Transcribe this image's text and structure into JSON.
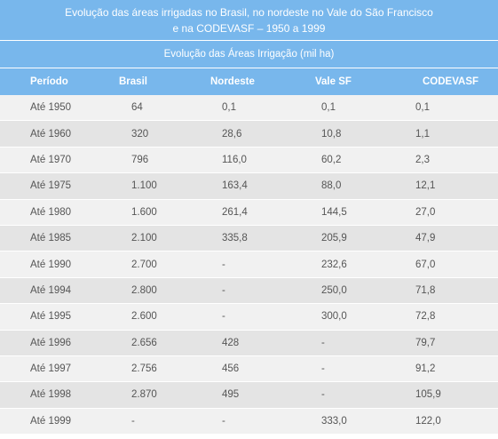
{
  "title_line1": "Evolução das áreas irrigadas no Brasil, no nordeste no Vale do São Francisco",
  "title_line2": "e na CODEVASF – 1950 a 1999",
  "subtitle": "Evolução das Áreas Irrigação (mil ha)",
  "headers": [
    "Período",
    "Brasil",
    "Nordeste",
    "Vale SF",
    "CODEVASF"
  ],
  "rows": [
    [
      "Até 1950",
      "64",
      "0,1",
      "0,1",
      "0,1"
    ],
    [
      "Até 1960",
      "320",
      "28,6",
      "10,8",
      "1,1"
    ],
    [
      "Até 1970",
      "796",
      "116,0",
      "60,2",
      "2,3"
    ],
    [
      "Até 1975",
      "1.100",
      "163,4",
      "88,0",
      "12,1"
    ],
    [
      "Até 1980",
      "1.600",
      "261,4",
      "144,5",
      "27,0"
    ],
    [
      "Até 1985",
      "2.100",
      "335,8",
      "205,9",
      "47,9"
    ],
    [
      "Até 1990",
      "2.700",
      "-",
      "232,6",
      "67,0"
    ],
    [
      "Até 1994",
      "2.800",
      "-",
      "250,0",
      "71,8"
    ],
    [
      "Até 1995",
      "2.600",
      "-",
      "300,0",
      "72,8"
    ],
    [
      "Até 1996",
      "2.656",
      "428",
      "-",
      "79,7"
    ],
    [
      "Até 1997",
      "2.756",
      "456",
      "-",
      "91,2"
    ],
    [
      "Até 1998",
      "2.870",
      "495",
      "-",
      "105,9"
    ],
    [
      "Até 1999",
      "-",
      "-",
      "333,0",
      "122,0"
    ]
  ]
}
